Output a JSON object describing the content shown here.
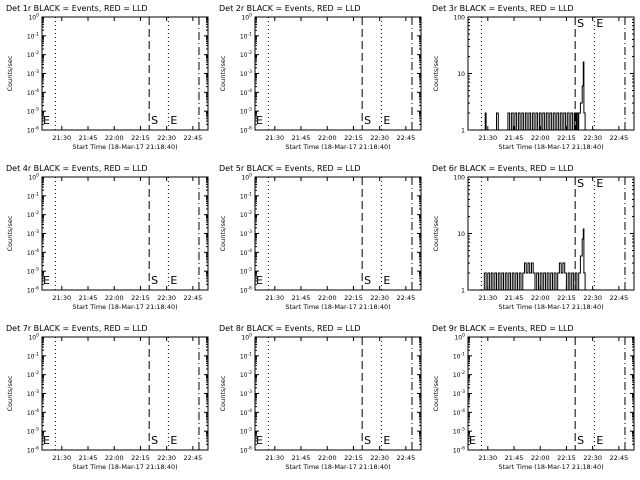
{
  "figure": {
    "xlabel": "Start Time (18-Mar-17 21:18:40)",
    "ylabel": "Counts/sec",
    "x_tick_labels": [
      "21:30",
      "21:45",
      "22:00",
      "22:15",
      "22:30",
      "22:45"
    ],
    "marker_labels": {
      "start": "S",
      "end": "E"
    },
    "marker_labels_left": "E"
  },
  "chart_data": [
    {
      "type": "line",
      "title": "Det 1r BLACK = Events, RED = LLD",
      "scale": "log",
      "y_tick_labels": [
        "10^-6",
        "10^-5",
        "10^-4",
        "10^-3",
        "10^-2",
        "10^-1",
        "10^0"
      ],
      "ylim_exponent": [
        -6,
        0
      ],
      "series": []
    },
    {
      "type": "line",
      "title": "Det 2r BLACK = Events, RED = LLD",
      "scale": "log",
      "y_tick_labels": [
        "10^-6",
        "10^-5",
        "10^-4",
        "10^-3",
        "10^-2",
        "10^-1",
        "10^0"
      ],
      "ylim_exponent": [
        -6,
        0
      ],
      "series": []
    },
    {
      "type": "line",
      "title": "Det 3r BLACK = Events, RED = LLD",
      "scale": "log",
      "y_tick_labels": [
        "1",
        "10",
        "100"
      ],
      "ylim": [
        1,
        100
      ],
      "series": [
        {
          "color": "#000000",
          "points": [
            [
              "21:28:00",
              1
            ],
            [
              "21:28:30",
              2
            ],
            [
              "21:29:00",
              1
            ],
            [
              "21:34:00",
              1
            ],
            [
              "21:35:00",
              2
            ],
            [
              "21:36:00",
              1
            ],
            [
              "21:41:00",
              1
            ],
            [
              "21:41:30",
              2
            ],
            [
              "21:42:30",
              1
            ],
            [
              "21:43:30",
              2
            ],
            [
              "21:44:30",
              1
            ],
            [
              "21:45:30",
              2
            ],
            [
              "21:46:30",
              1
            ],
            [
              "21:47:30",
              2
            ],
            [
              "21:48:30",
              1
            ],
            [
              "21:49:30",
              2
            ],
            [
              "21:50:30",
              1
            ],
            [
              "21:51:30",
              2
            ],
            [
              "21:52:30",
              1
            ],
            [
              "21:53:30",
              2
            ],
            [
              "21:54:30",
              1
            ],
            [
              "21:55:30",
              2
            ],
            [
              "21:56:30",
              1
            ],
            [
              "21:57:30",
              2
            ],
            [
              "21:58:30",
              1
            ],
            [
              "21:59:30",
              2
            ],
            [
              "22:00:30",
              1
            ],
            [
              "22:01:30",
              2
            ],
            [
              "22:02:30",
              1
            ],
            [
              "22:03:30",
              2
            ],
            [
              "22:04:30",
              1
            ],
            [
              "22:05:30",
              2
            ],
            [
              "22:06:30",
              1
            ],
            [
              "22:07:30",
              2
            ],
            [
              "22:08:30",
              1
            ],
            [
              "22:09:30",
              2
            ],
            [
              "22:10:30",
              1
            ],
            [
              "22:11:30",
              2
            ],
            [
              "22:12:30",
              1
            ],
            [
              "22:13:30",
              2
            ],
            [
              "22:14:30",
              1
            ],
            [
              "22:15:30",
              2
            ],
            [
              "22:16:30",
              1
            ],
            [
              "22:17:30",
              2
            ],
            [
              "22:18:30",
              1
            ],
            [
              "22:19:30",
              2
            ],
            [
              "22:20:30",
              1
            ],
            [
              "22:21:00",
              2
            ],
            [
              "22:21:40",
              1
            ],
            [
              "22:22:00",
              2
            ],
            [
              "22:23:00",
              3
            ],
            [
              "22:24:00",
              6
            ],
            [
              "22:24:40",
              16
            ],
            [
              "22:25:00",
              2
            ],
            [
              "22:25:40",
              1
            ]
          ]
        }
      ]
    },
    {
      "type": "line",
      "title": "Det 4r BLACK = Events, RED = LLD",
      "scale": "log",
      "y_tick_labels": [
        "10^-6",
        "10^-5",
        "10^-4",
        "10^-3",
        "10^-2",
        "10^-1",
        "10^0"
      ],
      "ylim_exponent": [
        -6,
        0
      ],
      "series": []
    },
    {
      "type": "line",
      "title": "Det 5r BLACK = Events, RED = LLD",
      "scale": "log",
      "y_tick_labels": [
        "10^-6",
        "10^-5",
        "10^-4",
        "10^-3",
        "10^-2",
        "10^-1",
        "10^0"
      ],
      "ylim_exponent": [
        -6,
        0
      ],
      "series": []
    },
    {
      "type": "line",
      "title": "Det 6r BLACK = Events, RED = LLD",
      "scale": "log",
      "y_tick_labels": [
        "1",
        "10",
        "100"
      ],
      "ylim": [
        1,
        100
      ],
      "series": [
        {
          "color": "#000000",
          "points": [
            [
              "21:27:00",
              1
            ],
            [
              "21:28:00",
              2
            ],
            [
              "21:29:00",
              1
            ],
            [
              "21:30:00",
              2
            ],
            [
              "21:31:00",
              1
            ],
            [
              "21:32:00",
              2
            ],
            [
              "21:33:00",
              1
            ],
            [
              "21:34:00",
              2
            ],
            [
              "21:35:00",
              1
            ],
            [
              "21:36:00",
              2
            ],
            [
              "21:37:00",
              1
            ],
            [
              "21:38:00",
              2
            ],
            [
              "21:39:00",
              1
            ],
            [
              "21:40:00",
              2
            ],
            [
              "21:41:00",
              1
            ],
            [
              "21:42:00",
              2
            ],
            [
              "21:43:00",
              1
            ],
            [
              "21:44:00",
              2
            ],
            [
              "21:45:00",
              1
            ],
            [
              "21:46:00",
              2
            ],
            [
              "21:47:00",
              1
            ],
            [
              "21:48:00",
              2
            ],
            [
              "21:49:00",
              1
            ],
            [
              "21:50:00",
              2
            ],
            [
              "21:51:00",
              3
            ],
            [
              "21:52:00",
              2
            ],
            [
              "21:53:00",
              3
            ],
            [
              "21:54:00",
              2
            ],
            [
              "21:55:00",
              3
            ],
            [
              "21:56:00",
              2
            ],
            [
              "21:57:00",
              1
            ],
            [
              "21:58:00",
              2
            ],
            [
              "21:59:00",
              1
            ],
            [
              "22:00:00",
              2
            ],
            [
              "22:01:00",
              1
            ],
            [
              "22:02:00",
              2
            ],
            [
              "22:03:00",
              1
            ],
            [
              "22:04:00",
              2
            ],
            [
              "22:05:00",
              1
            ],
            [
              "22:06:00",
              2
            ],
            [
              "22:07:00",
              1
            ],
            [
              "22:08:00",
              2
            ],
            [
              "22:09:00",
              1
            ],
            [
              "22:10:00",
              2
            ],
            [
              "22:11:00",
              3
            ],
            [
              "22:12:00",
              2
            ],
            [
              "22:13:00",
              3
            ],
            [
              "22:14:00",
              2
            ],
            [
              "22:15:00",
              1
            ],
            [
              "22:16:00",
              2
            ],
            [
              "22:17:00",
              1
            ],
            [
              "22:18:00",
              2
            ],
            [
              "22:19:00",
              1
            ],
            [
              "22:20:00",
              2
            ],
            [
              "22:21:00",
              1
            ],
            [
              "22:22:00",
              2
            ],
            [
              "22:23:00",
              4
            ],
            [
              "22:24:00",
              8
            ],
            [
              "22:24:40",
              12
            ],
            [
              "22:25:00",
              2
            ],
            [
              "22:25:40",
              1
            ]
          ]
        }
      ]
    },
    {
      "type": "line",
      "title": "Det 7r BLACK = Events, RED = LLD",
      "scale": "log",
      "y_tick_labels": [
        "10^-6",
        "10^-5",
        "10^-4",
        "10^-3",
        "10^-2",
        "10^-1",
        "10^0"
      ],
      "ylim_exponent": [
        -6,
        0
      ],
      "series": []
    },
    {
      "type": "line",
      "title": "Det 8r BLACK = Events, RED = LLD",
      "scale": "log",
      "y_tick_labels": [
        "10^-6",
        "10^-5",
        "10^-4",
        "10^-3",
        "10^-2",
        "10^-1",
        "10^0"
      ],
      "ylim_exponent": [
        -6,
        0
      ],
      "series": []
    },
    {
      "type": "line",
      "title": "Det 9r BLACK = Events, RED = LLD",
      "scale": "log",
      "y_tick_labels": [
        "10^-6",
        "10^-5",
        "10^-4",
        "10^-3",
        "10^-2",
        "10^-1",
        "10^0"
      ],
      "ylim_exponent": [
        -6,
        0
      ],
      "series": []
    }
  ],
  "x_axis": {
    "start": "21:18:40",
    "end": "22:53:40",
    "vertical_lines": [
      {
        "time": "21:26:20",
        "style": "dotted"
      },
      {
        "time": "22:20:00",
        "style": "dashed"
      },
      {
        "time": "22:31:00",
        "style": "dotted"
      },
      {
        "time": "22:48:30",
        "style": "dash-dot"
      }
    ],
    "marker_times": {
      "start": "22:20:00",
      "end": "22:31:00"
    }
  }
}
